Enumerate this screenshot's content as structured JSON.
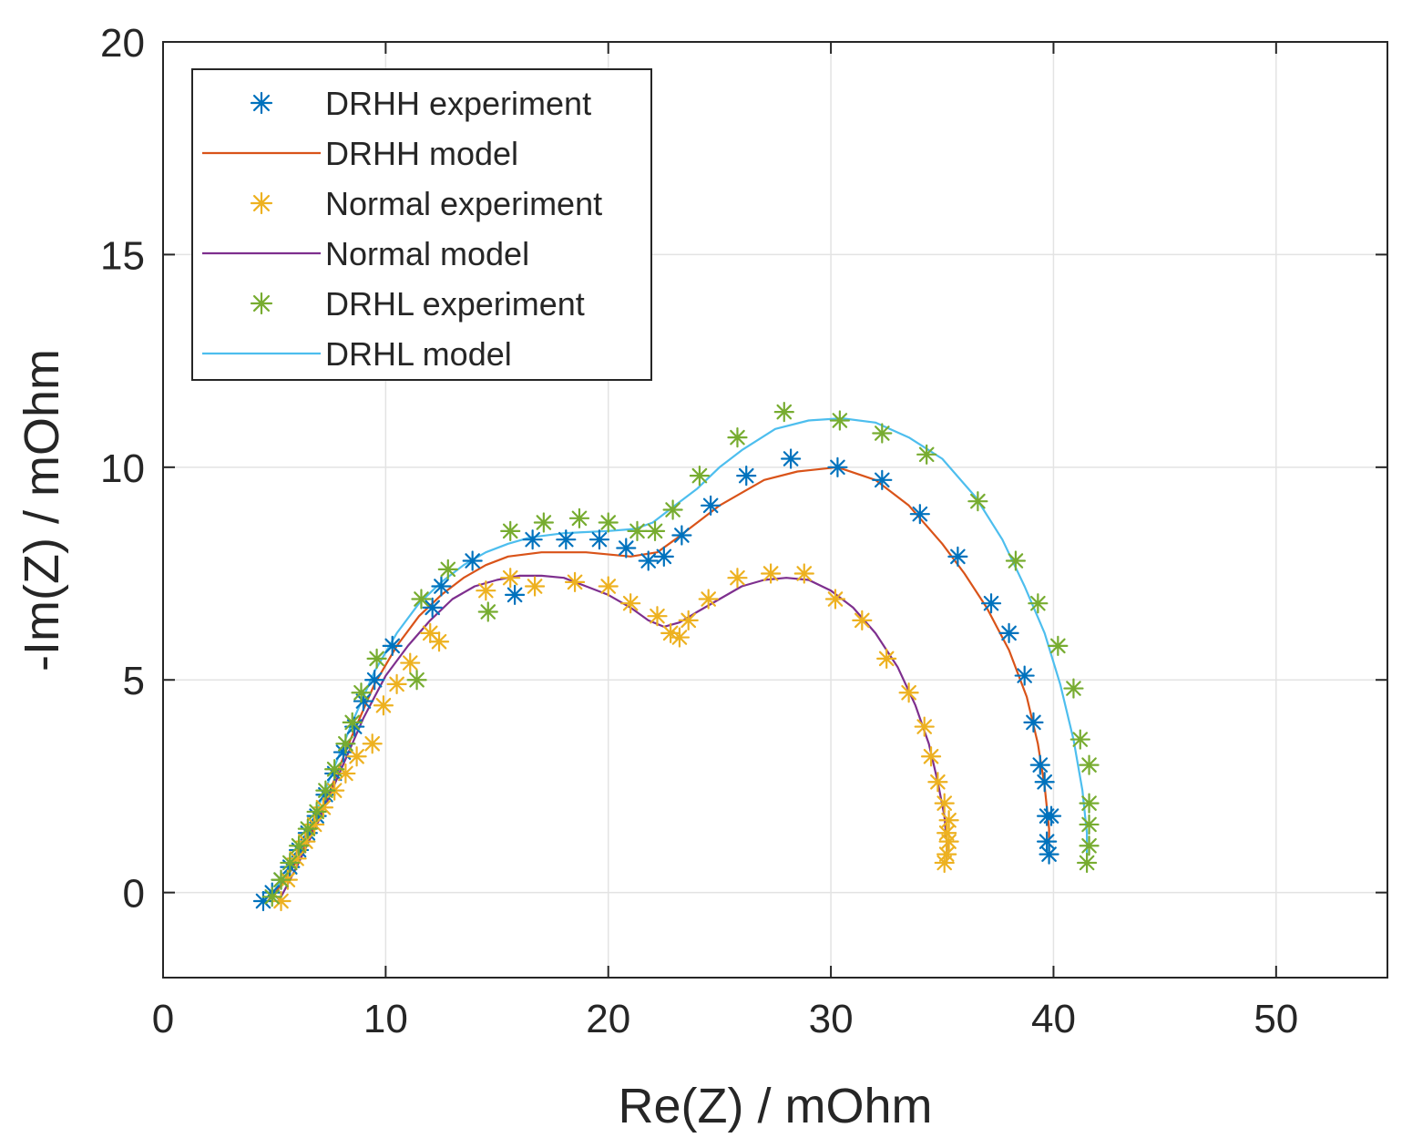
{
  "chart_data": {
    "type": "scatter",
    "title": "",
    "xlabel": "Re(Z) / mOhm",
    "ylabel": "-Im(Z) / mOhm",
    "xlim": [
      0,
      55
    ],
    "ylim": [
      -2,
      20
    ],
    "xticks": [
      0,
      10,
      20,
      30,
      40,
      50
    ],
    "yticks": [
      0,
      5,
      10,
      15,
      20
    ],
    "xtick_labels": [
      "0",
      "10",
      "20",
      "30",
      "40",
      "50"
    ],
    "ytick_labels": [
      "0",
      "5",
      "10",
      "15",
      "20"
    ],
    "grid": true,
    "legend_position": "top-left",
    "series": [
      {
        "name": "DRHH experiment",
        "kind": "markers",
        "marker": "asterisk",
        "color": "#0072BD",
        "points": [
          [
            4.5,
            -0.2
          ],
          [
            4.9,
            0
          ],
          [
            5.3,
            0.3
          ],
          [
            5.7,
            0.6
          ],
          [
            6.1,
            1
          ],
          [
            6.5,
            1.4
          ],
          [
            6.9,
            1.8
          ],
          [
            7.3,
            2.3
          ],
          [
            7.7,
            2.8
          ],
          [
            8.1,
            3.3
          ],
          [
            8.6,
            3.9
          ],
          [
            9,
            4.5
          ],
          [
            9.5,
            5
          ],
          [
            10.3,
            5.8
          ],
          [
            12.1,
            6.7
          ],
          [
            12.5,
            7.2
          ],
          [
            13.9,
            7.8
          ],
          [
            15.8,
            7
          ],
          [
            16.6,
            8.3
          ],
          [
            18.1,
            8.3
          ],
          [
            19.6,
            8.3
          ],
          [
            20.8,
            8.1
          ],
          [
            21.8,
            7.8
          ],
          [
            22.5,
            7.9
          ],
          [
            23.3,
            8.4
          ],
          [
            24.6,
            9.1
          ],
          [
            26.2,
            9.8
          ],
          [
            28.2,
            10.2
          ],
          [
            30.3,
            10
          ],
          [
            32.3,
            9.7
          ],
          [
            34,
            8.9
          ],
          [
            35.7,
            7.9
          ],
          [
            37.2,
            6.8
          ],
          [
            38,
            6.1
          ],
          [
            38.7,
            5.1
          ],
          [
            39.1,
            4
          ],
          [
            39.4,
            3
          ],
          [
            39.6,
            2.6
          ],
          [
            39.9,
            1.8
          ],
          [
            39.7,
            1.8
          ],
          [
            39.7,
            1.2
          ],
          [
            39.8,
            0.9
          ]
        ]
      },
      {
        "name": "DRHH model",
        "kind": "line",
        "color": "#D95319",
        "points": [
          [
            4.7,
            -0.2
          ],
          [
            5.5,
            0.3
          ],
          [
            6.5,
            1.2
          ],
          [
            7.5,
            2.4
          ],
          [
            8.5,
            3.7
          ],
          [
            9.5,
            4.9
          ],
          [
            10.5,
            5.8
          ],
          [
            11.5,
            6.5
          ],
          [
            12.5,
            7
          ],
          [
            13.5,
            7.4
          ],
          [
            14.5,
            7.7
          ],
          [
            15.5,
            7.9
          ],
          [
            17,
            8
          ],
          [
            19,
            8
          ],
          [
            21,
            7.9
          ],
          [
            22.2,
            8
          ],
          [
            23,
            8.3
          ],
          [
            24,
            8.7
          ],
          [
            25,
            9.1
          ],
          [
            26,
            9.4
          ],
          [
            27,
            9.7
          ],
          [
            28.5,
            9.9
          ],
          [
            30.3,
            10
          ],
          [
            32,
            9.7
          ],
          [
            33.5,
            9.1
          ],
          [
            35,
            8.2
          ],
          [
            36,
            7.5
          ],
          [
            37,
            6.7
          ],
          [
            38,
            5.7
          ],
          [
            38.8,
            4.6
          ],
          [
            39.3,
            3.5
          ],
          [
            39.6,
            2.5
          ],
          [
            39.8,
            1.5
          ],
          [
            39.8,
            0.8
          ]
        ]
      },
      {
        "name": "Normal experiment",
        "kind": "markers",
        "marker": "asterisk",
        "color": "#EDB120",
        "points": [
          [
            5.3,
            -0.2
          ],
          [
            5.6,
            0.3
          ],
          [
            6,
            0.8
          ],
          [
            6.4,
            1.2
          ],
          [
            6.8,
            1.6
          ],
          [
            7.2,
            2
          ],
          [
            7.7,
            2.4
          ],
          [
            8.2,
            2.8
          ],
          [
            8.7,
            3.2
          ],
          [
            9.4,
            3.5
          ],
          [
            9.9,
            4.4
          ],
          [
            10.5,
            4.9
          ],
          [
            11.1,
            5.4
          ],
          [
            12,
            6.1
          ],
          [
            12.4,
            5.9
          ],
          [
            14.5,
            7.1
          ],
          [
            15.6,
            7.4
          ],
          [
            16.7,
            7.2
          ],
          [
            18.5,
            7.3
          ],
          [
            20,
            7.2
          ],
          [
            21,
            6.8
          ],
          [
            22.2,
            6.5
          ],
          [
            22.8,
            6.1
          ],
          [
            23.2,
            6
          ],
          [
            23.6,
            6.4
          ],
          [
            24.5,
            6.9
          ],
          [
            25.8,
            7.4
          ],
          [
            27.3,
            7.5
          ],
          [
            28.8,
            7.5
          ],
          [
            30.2,
            6.9
          ],
          [
            31.4,
            6.4
          ],
          [
            32.5,
            5.5
          ],
          [
            33.5,
            4.7
          ],
          [
            34.2,
            3.9
          ],
          [
            34.5,
            3.2
          ],
          [
            34.8,
            2.6
          ],
          [
            35.1,
            2.1
          ],
          [
            35.3,
            1.7
          ],
          [
            35.2,
            1.4
          ],
          [
            35.3,
            1.2
          ],
          [
            35.2,
            0.9
          ],
          [
            35.1,
            0.7
          ]
        ]
      },
      {
        "name": "Normal model",
        "kind": "line",
        "color": "#7E2F8E",
        "points": [
          [
            5.2,
            -0.2
          ],
          [
            6,
            0.6
          ],
          [
            7,
            1.7
          ],
          [
            8,
            2.9
          ],
          [
            9,
            4.1
          ],
          [
            10,
            5.1
          ],
          [
            11,
            5.8
          ],
          [
            12,
            6.4
          ],
          [
            13,
            6.9
          ],
          [
            14,
            7.2
          ],
          [
            15,
            7.35
          ],
          [
            16,
            7.45
          ],
          [
            17,
            7.45
          ],
          [
            18,
            7.4
          ],
          [
            19,
            7.2
          ],
          [
            20,
            7
          ],
          [
            21,
            6.7
          ],
          [
            21.8,
            6.4
          ],
          [
            22.5,
            6.25
          ],
          [
            23.2,
            6.35
          ],
          [
            24,
            6.6
          ],
          [
            25,
            6.9
          ],
          [
            26,
            7.2
          ],
          [
            27,
            7.35
          ],
          [
            28,
            7.4
          ],
          [
            29,
            7.35
          ],
          [
            30,
            7.1
          ],
          [
            31,
            6.7
          ],
          [
            32,
            6.1
          ],
          [
            33,
            5.3
          ],
          [
            33.8,
            4.4
          ],
          [
            34.4,
            3.5
          ],
          [
            34.8,
            2.6
          ],
          [
            35.1,
            1.8
          ],
          [
            35.2,
            1.2
          ],
          [
            35.2,
            0.7
          ]
        ]
      },
      {
        "name": "DRHL experiment",
        "kind": "markers",
        "marker": "asterisk",
        "color": "#77AC30",
        "points": [
          [
            4.9,
            -0.1
          ],
          [
            5.3,
            0.3
          ],
          [
            5.7,
            0.7
          ],
          [
            6.1,
            1.1
          ],
          [
            6.5,
            1.5
          ],
          [
            6.9,
            1.9
          ],
          [
            7.3,
            2.4
          ],
          [
            7.7,
            2.9
          ],
          [
            8.2,
            3.5
          ],
          [
            8.5,
            4
          ],
          [
            8.9,
            4.7
          ],
          [
            9.6,
            5.5
          ],
          [
            11.4,
            5
          ],
          [
            11.6,
            6.9
          ],
          [
            12.8,
            7.6
          ],
          [
            14.6,
            6.6
          ],
          [
            15.6,
            8.5
          ],
          [
            17.1,
            8.7
          ],
          [
            18.7,
            8.8
          ],
          [
            20,
            8.7
          ],
          [
            21.3,
            8.5
          ],
          [
            22.1,
            8.5
          ],
          [
            22.9,
            9
          ],
          [
            24.1,
            9.8
          ],
          [
            25.8,
            10.7
          ],
          [
            27.9,
            11.3
          ],
          [
            30.4,
            11.1
          ],
          [
            32.3,
            10.8
          ],
          [
            34.3,
            10.3
          ],
          [
            36.6,
            9.2
          ],
          [
            38.3,
            7.8
          ],
          [
            39.3,
            6.8
          ],
          [
            40.2,
            5.8
          ],
          [
            40.9,
            4.8
          ],
          [
            41.2,
            3.6
          ],
          [
            41.6,
            3
          ],
          [
            41.6,
            2.1
          ],
          [
            41.6,
            1.6
          ],
          [
            41.6,
            1.1
          ],
          [
            41.5,
            0.7
          ]
        ]
      },
      {
        "name": "DRHL model",
        "kind": "line",
        "color": "#4DBEEE",
        "points": [
          [
            4.8,
            -0.1
          ],
          [
            5.5,
            0.4
          ],
          [
            6.5,
            1.4
          ],
          [
            7.5,
            2.7
          ],
          [
            8.5,
            4
          ],
          [
            9.5,
            5.2
          ],
          [
            10.5,
            6.1
          ],
          [
            11.5,
            6.8
          ],
          [
            12.5,
            7.3
          ],
          [
            13.5,
            7.7
          ],
          [
            14.5,
            8
          ],
          [
            15.5,
            8.2
          ],
          [
            16.5,
            8.35
          ],
          [
            18,
            8.45
          ],
          [
            20,
            8.5
          ],
          [
            21.2,
            8.55
          ],
          [
            22,
            8.7
          ],
          [
            23,
            9.1
          ],
          [
            24,
            9.5
          ],
          [
            25,
            10
          ],
          [
            26,
            10.4
          ],
          [
            27.5,
            10.9
          ],
          [
            29,
            11.1
          ],
          [
            30.5,
            11.15
          ],
          [
            32,
            11.05
          ],
          [
            33.5,
            10.7
          ],
          [
            35,
            10.2
          ],
          [
            36.5,
            9.3
          ],
          [
            37.7,
            8.3
          ],
          [
            38.7,
            7.2
          ],
          [
            39.6,
            6.1
          ],
          [
            40.3,
            4.9
          ],
          [
            40.9,
            3.6
          ],
          [
            41.3,
            2.4
          ],
          [
            41.5,
            1.4
          ],
          [
            41.5,
            0.8
          ]
        ]
      }
    ]
  }
}
